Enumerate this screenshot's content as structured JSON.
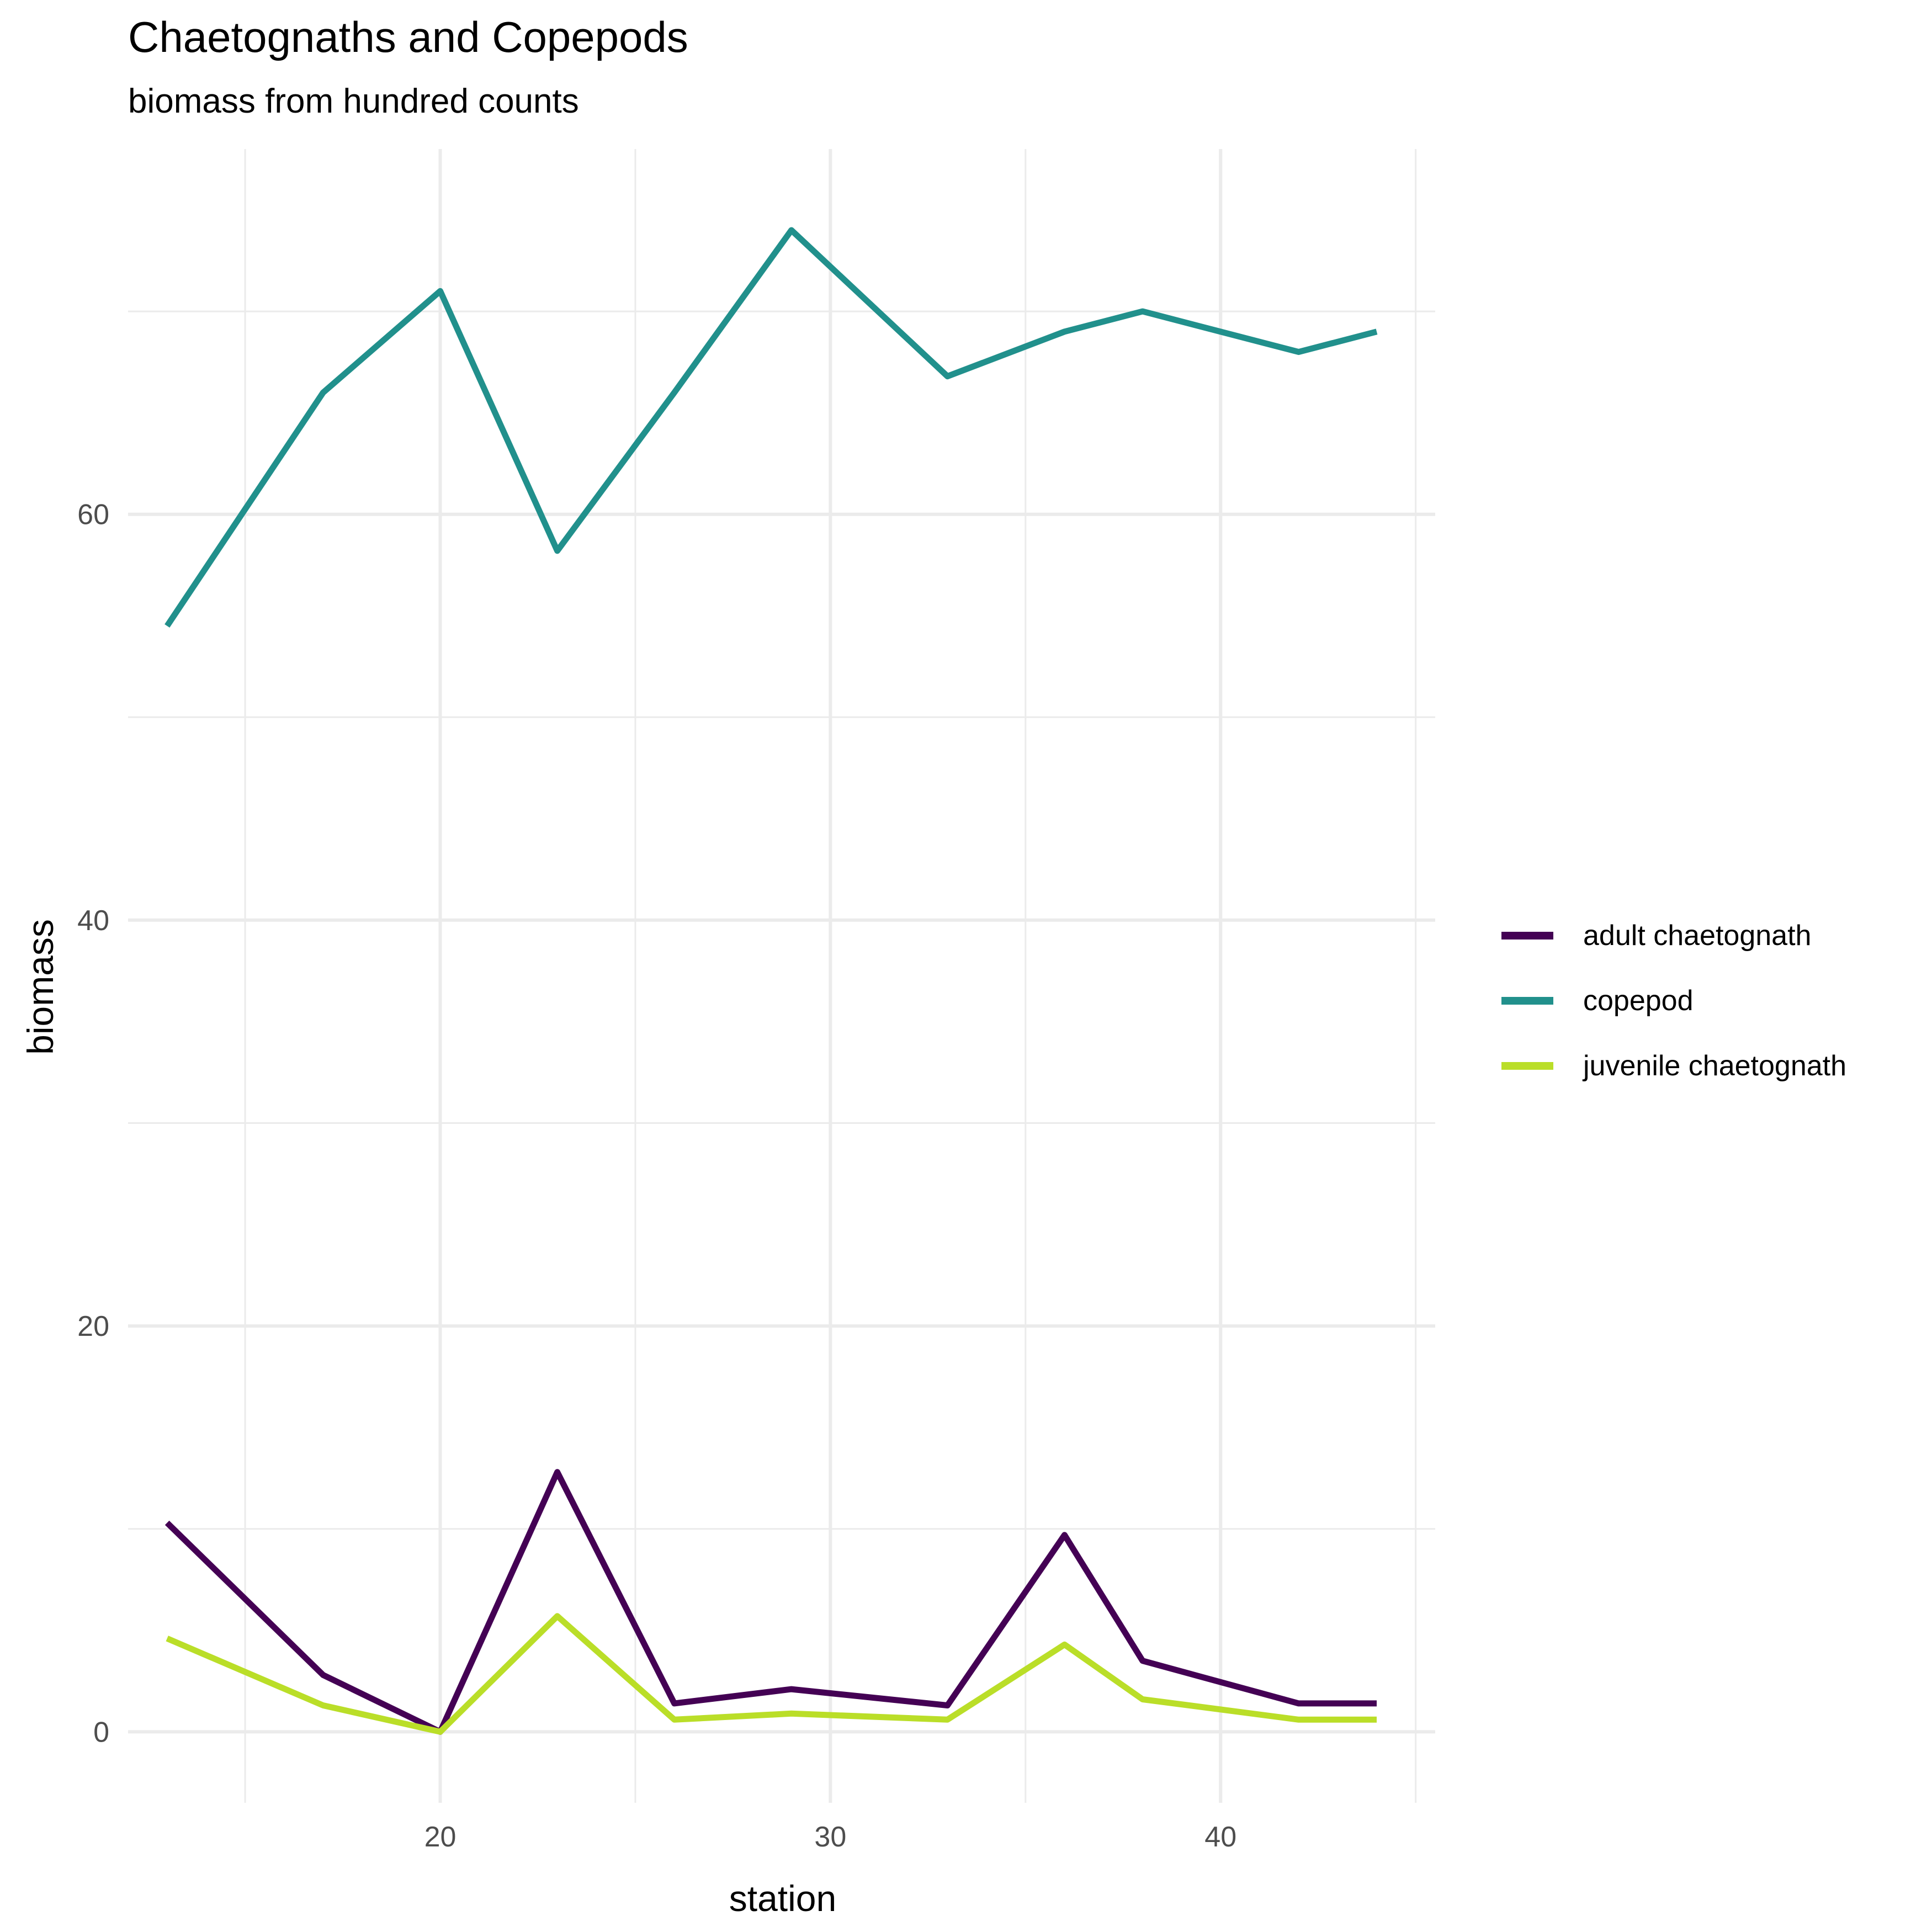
{
  "chart_data": {
    "type": "line",
    "title": "Chaetognaths and Copepods",
    "subtitle": "biomass from hundred counts",
    "xlabel": "station",
    "ylabel": "biomass",
    "xlim": [
      12,
      45.5
    ],
    "ylim": [
      -3.5,
      78
    ],
    "xticks": [
      20,
      30,
      40
    ],
    "yticks": [
      0,
      20,
      40,
      60
    ],
    "xminor": [
      15,
      25,
      35,
      45
    ],
    "yminor": [
      10,
      30,
      50,
      70
    ],
    "grid": true,
    "legend_position": "right",
    "series": [
      {
        "name": "adult chaetognath",
        "color": "#440154",
        "x": [
          13,
          17,
          20,
          23,
          26,
          29,
          33,
          36,
          38,
          42,
          44
        ],
        "y": [
          10.3,
          2.8,
          0,
          12.8,
          1.4,
          2.1,
          1.3,
          9.7,
          3.5,
          1.4,
          1.4
        ]
      },
      {
        "name": "copepod",
        "color": "#21908C",
        "x": [
          13,
          17,
          20,
          23,
          26,
          29,
          33,
          36,
          38,
          42,
          44
        ],
        "y": [
          54.5,
          66,
          71,
          58.2,
          66,
          74,
          66.8,
          69,
          70,
          68,
          69
        ]
      },
      {
        "name": "juvenile chaetognath",
        "color": "#BADE28",
        "x": [
          13,
          17,
          20,
          23,
          26,
          29,
          33,
          36,
          38,
          42,
          44
        ],
        "y": [
          4.6,
          1.3,
          0,
          5.7,
          0.6,
          0.9,
          0.6,
          4.3,
          1.6,
          0.6,
          0.6
        ]
      }
    ]
  }
}
